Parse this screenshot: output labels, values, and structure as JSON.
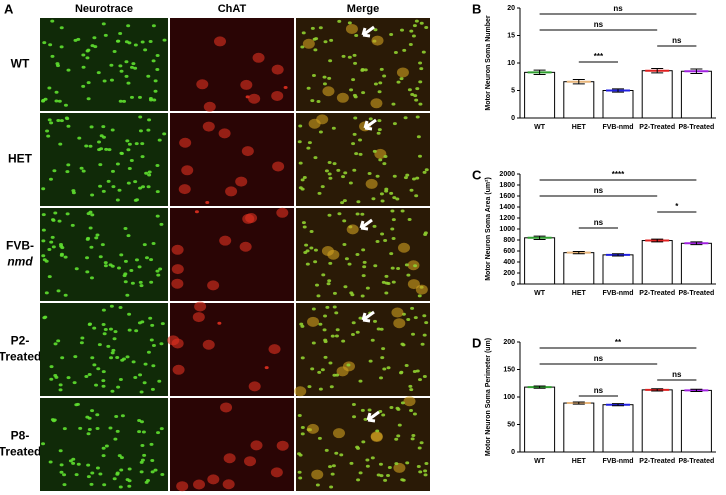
{
  "figure": {
    "panel_a": "A",
    "columns": [
      "Neurotrace",
      "ChAT",
      "Merge"
    ],
    "rows": [
      [
        "WT"
      ],
      [
        "HET"
      ],
      [
        "FVB-",
        "nmd"
      ],
      [
        "P2-",
        "Treated"
      ],
      [
        "P8-",
        "Treated"
      ]
    ]
  },
  "chart_data": [
    {
      "type": "bar",
      "panel": "B",
      "ylabel": "Motor Neuron Soma Number",
      "categories": [
        "WT",
        "HET",
        "FVB-nmd",
        "P2-Treated",
        "P8-Treated"
      ],
      "values": [
        8.3,
        6.6,
        5.0,
        8.6,
        8.5
      ],
      "errors": [
        0.4,
        0.4,
        0.3,
        0.4,
        0.4
      ],
      "colors": [
        "#2e9e2e",
        "#e8b57a",
        "#2020e0",
        "#e02020",
        "#a020e0"
      ],
      "ylim": [
        0,
        20
      ],
      "yticks": [
        0,
        5,
        10,
        15,
        20
      ],
      "comparisons": [
        {
          "label": "ns",
          "from": "WT",
          "to": "P8-Treated"
        },
        {
          "label": "ns",
          "from": "WT",
          "to": "P2-Treated"
        },
        {
          "label": "ns",
          "from": "P2-Treated",
          "to": "P8-Treated"
        },
        {
          "label": "***",
          "from": "HET",
          "to": "FVB-nmd"
        }
      ]
    },
    {
      "type": "bar",
      "panel": "C",
      "ylabel": "Motor Neuron Soma Area (um²)",
      "categories": [
        "WT",
        "HET",
        "FVB-nmd",
        "P2-Treated",
        "P8-Treated"
      ],
      "values": [
        840,
        570,
        530,
        790,
        740
      ],
      "errors": [
        30,
        20,
        20,
        25,
        25
      ],
      "colors": [
        "#2e9e2e",
        "#e8b57a",
        "#2020e0",
        "#e02020",
        "#a020e0"
      ],
      "ylim": [
        0,
        2000
      ],
      "yticks": [
        0,
        200,
        400,
        600,
        800,
        1000,
        1200,
        1400,
        1600,
        1800,
        2000
      ],
      "comparisons": [
        {
          "label": "****",
          "from": "WT",
          "to": "P8-Treated"
        },
        {
          "label": "ns",
          "from": "WT",
          "to": "P2-Treated"
        },
        {
          "label": "*",
          "from": "P2-Treated",
          "to": "P8-Treated"
        },
        {
          "label": "ns",
          "from": "HET",
          "to": "FVB-nmd"
        }
      ]
    },
    {
      "type": "bar",
      "panel": "D",
      "ylabel": "Motor Neuron Soma Perimeter (um)",
      "categories": [
        "WT",
        "HET",
        "FVB-nmd",
        "P2-Treated",
        "P8-Treated"
      ],
      "values": [
        118,
        89,
        86,
        113,
        112
      ],
      "errors": [
        2,
        2,
        2,
        2,
        2
      ],
      "colors": [
        "#2e9e2e",
        "#e8b57a",
        "#2020e0",
        "#e02020",
        "#a020e0"
      ],
      "ylim": [
        0,
        200
      ],
      "yticks": [
        0,
        50,
        100,
        150,
        200
      ],
      "comparisons": [
        {
          "label": "**",
          "from": "WT",
          "to": "P8-Treated"
        },
        {
          "label": "ns",
          "from": "WT",
          "to": "P2-Treated"
        },
        {
          "label": "ns",
          "from": "P2-Treated",
          "to": "P8-Treated"
        },
        {
          "label": "ns",
          "from": "HET",
          "to": "FVB-nmd"
        }
      ]
    }
  ]
}
